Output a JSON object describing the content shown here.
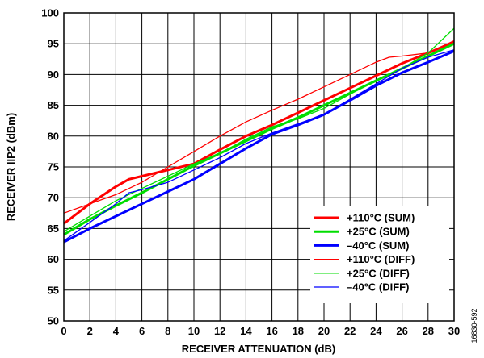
{
  "chart_data": {
    "type": "line",
    "title": "",
    "xlabel": "RECEIVER ATTENUATION (dB)",
    "ylabel": "RECEIVER IIP2 (dBm)",
    "xlim": [
      0,
      30
    ],
    "ylim": [
      50,
      100
    ],
    "xticks": [
      0,
      2,
      4,
      6,
      8,
      10,
      12,
      14,
      16,
      18,
      20,
      22,
      24,
      26,
      28,
      30
    ],
    "yticks": [
      50,
      55,
      60,
      65,
      70,
      75,
      80,
      85,
      90,
      95,
      100
    ],
    "grid": true,
    "legend_position": "bottom-right",
    "series": [
      {
        "name": "+110°C (SUM)",
        "color": "#ff0000",
        "style": "thick",
        "x": [
          0,
          2,
          4,
          5,
          6,
          8,
          10,
          12,
          14,
          16,
          18,
          20,
          22,
          24,
          26,
          28,
          30
        ],
        "y": [
          65.8,
          69,
          71.8,
          73,
          73.5,
          74.5,
          75.5,
          77.8,
          80,
          81.8,
          83.8,
          85.8,
          87.8,
          89.8,
          91.8,
          93.5,
          95.3
        ]
      },
      {
        "name": "+25°C (SUM)",
        "color": "#00dd00",
        "style": "thick",
        "x": [
          0,
          2,
          4,
          6,
          8,
          10,
          12,
          14,
          16,
          18,
          20,
          22,
          24,
          26,
          28,
          30
        ],
        "y": [
          64,
          66.5,
          68.7,
          70.8,
          73,
          75.2,
          77.2,
          79.2,
          81.2,
          83,
          85,
          87,
          89,
          91,
          93,
          95
        ]
      },
      {
        "name": "–40°C (SUM)",
        "color": "#0000ff",
        "style": "thick",
        "x": [
          0,
          2,
          4,
          6,
          8,
          10,
          12,
          14,
          16,
          18,
          20,
          22,
          24,
          26,
          28,
          30
        ],
        "y": [
          62.8,
          65,
          67,
          69,
          71,
          73,
          75.5,
          78,
          80.3,
          81.8,
          83.5,
          85.8,
          88.2,
          90.3,
          92,
          93.8
        ]
      },
      {
        "name": "+110°C (DIFF)",
        "color": "#ff0000",
        "style": "thin",
        "x": [
          0,
          2,
          4,
          6,
          8,
          10,
          12,
          14,
          16,
          18,
          20,
          22,
          24,
          25,
          26,
          28,
          30
        ],
        "y": [
          67.5,
          69,
          70.5,
          72.5,
          75,
          77.5,
          80,
          82.3,
          84.2,
          86,
          88,
          90,
          92,
          92.8,
          93,
          93.5,
          95.5
        ]
      },
      {
        "name": "+25°C (DIFF)",
        "color": "#00dd00",
        "style": "thin",
        "x": [
          0,
          2,
          4,
          6,
          8,
          10,
          12,
          14,
          16,
          18,
          20,
          22,
          24,
          26,
          28,
          30
        ],
        "y": [
          64.5,
          67,
          69.5,
          71.5,
          73.5,
          75.5,
          77.2,
          79.5,
          81.5,
          82.8,
          84.5,
          86.8,
          89,
          91,
          93.5,
          97.5
        ]
      },
      {
        "name": "–40°C (DIFF)",
        "color": "#0000ff",
        "style": "thin",
        "x": [
          0,
          2,
          4,
          5,
          6,
          8,
          10,
          12,
          14,
          16,
          18,
          20,
          22,
          24,
          26,
          28,
          30
        ],
        "y": [
          63,
          66,
          69,
          70.8,
          71.3,
          72.5,
          74.5,
          76.5,
          78.8,
          80.5,
          82,
          83.5,
          86,
          88.5,
          91,
          92.8,
          94
        ]
      }
    ]
  },
  "figure_id": "16830-592"
}
